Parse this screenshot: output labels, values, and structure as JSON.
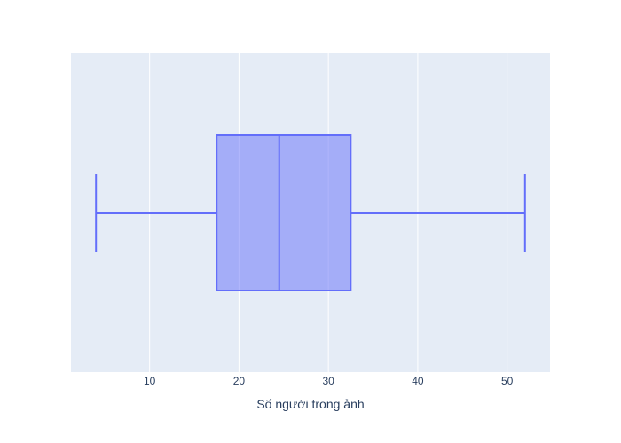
{
  "chart_data": {
    "type": "box",
    "orientation": "horizontal",
    "title": "",
    "xlabel": "Số người trong ảnh",
    "ylabel": "",
    "xlim": [
      1.2,
      54.8
    ],
    "x_ticks": [
      10,
      20,
      30,
      40,
      50
    ],
    "grid": true,
    "legend": "none",
    "series": [
      {
        "min": 4,
        "q1": 17.5,
        "median": 24.5,
        "q3": 32.5,
        "max": 52
      }
    ],
    "colors": {
      "plot_background": "#e5ecf6",
      "grid": "#ffffff",
      "box_line": "#636efa",
      "box_fill": "rgba(99,110,250,0.5)",
      "text": "#2a3f5f"
    }
  }
}
